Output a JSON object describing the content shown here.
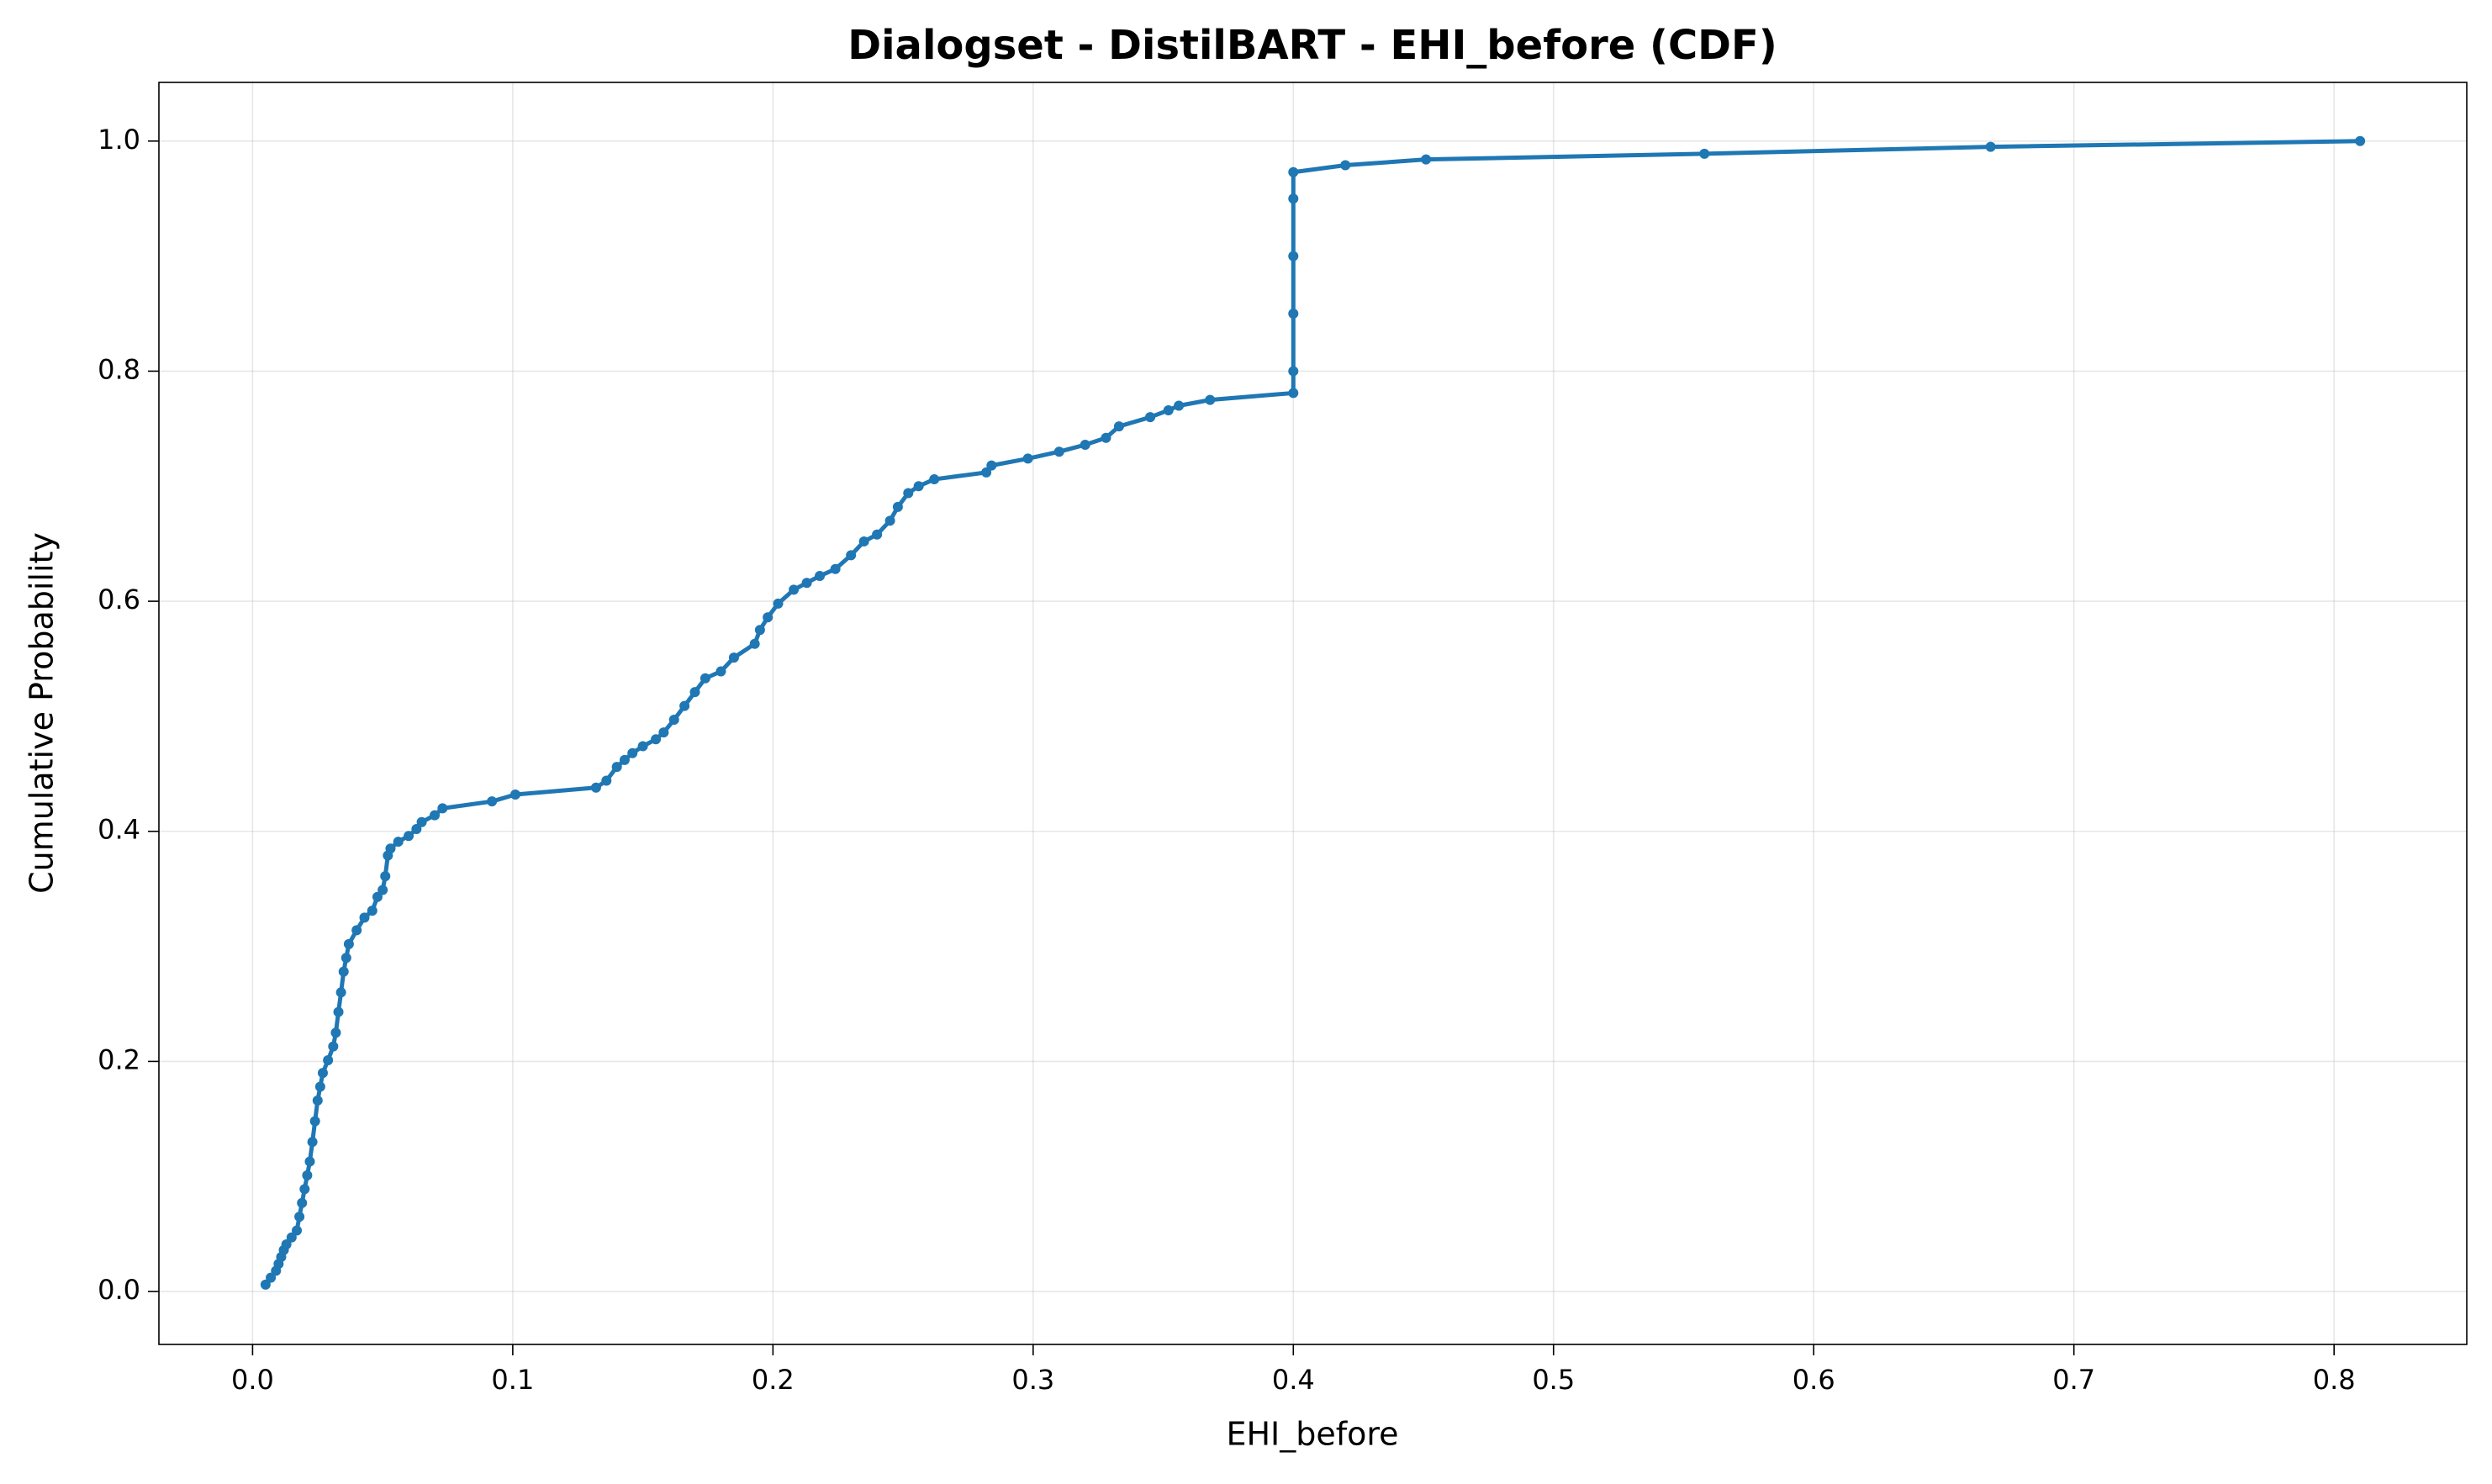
{
  "chart_data": {
    "type": "line",
    "title": "Dialogset - DistilBART - EHI_before (CDF)",
    "x_label": "EHI_before",
    "y_label": "Cumulative Probability",
    "xlim": [
      -0.036,
      0.851
    ],
    "ylim": [
      -0.046,
      1.051
    ],
    "xticks": [
      {
        "value": 0,
        "label": "0.0"
      },
      {
        "value": 0.1,
        "label": "0.1"
      },
      {
        "value": 0.2,
        "label": "0.2"
      },
      {
        "value": 0.3,
        "label": "0.3"
      },
      {
        "value": 0.4,
        "label": "0.4"
      },
      {
        "value": 0.5,
        "label": "0.5"
      },
      {
        "value": 0.6,
        "label": "0.6"
      },
      {
        "value": 0.7,
        "label": "0.7"
      },
      {
        "value": 0.8,
        "label": "0.8"
      }
    ],
    "yticks": [
      {
        "value": 0,
        "label": "0.0"
      },
      {
        "value": 0.2,
        "label": "0.2"
      },
      {
        "value": 0.4,
        "label": "0.4"
      },
      {
        "value": 0.6,
        "label": "0.6"
      },
      {
        "value": 0.8,
        "label": "0.8"
      },
      {
        "value": 1,
        "label": "1.0"
      }
    ],
    "grid": true,
    "series": [
      {
        "color": "#1f77b4",
        "x": [
          0.005,
          0.007,
          0.009,
          0.01,
          0.011,
          0.012,
          0.013,
          0.015,
          0.017,
          0.018,
          0.019,
          0.02,
          0.021,
          0.022,
          0.023,
          0.024,
          0.025,
          0.026,
          0.027,
          0.029,
          0.031,
          0.032,
          0.033,
          0.034,
          0.035,
          0.036,
          0.037,
          0.04,
          0.043,
          0.046,
          0.048,
          0.05,
          0.051,
          0.052,
          0.053,
          0.056,
          0.06,
          0.063,
          0.065,
          0.07,
          0.073,
          0.092,
          0.101,
          0.132,
          0.136,
          0.14,
          0.143,
          0.146,
          0.15,
          0.155,
          0.158,
          0.162,
          0.166,
          0.17,
          0.174,
          0.18,
          0.185,
          0.193,
          0.195,
          0.198,
          0.202,
          0.208,
          0.213,
          0.218,
          0.224,
          0.23,
          0.235,
          0.24,
          0.245,
          0.248,
          0.252,
          0.256,
          0.262,
          0.282,
          0.284,
          0.298,
          0.31,
          0.32,
          0.328,
          0.333,
          0.345,
          0.352,
          0.356,
          0.368,
          0.4,
          0.4,
          0.4,
          0.4,
          0.4,
          0.4,
          0.42,
          0.451,
          0.558,
          0.668,
          0.81
        ],
        "values": [
          0.006,
          0.012,
          0.018,
          0.024,
          0.03,
          0.036,
          0.041,
          0.047,
          0.053,
          0.065,
          0.077,
          0.089,
          0.101,
          0.113,
          0.13,
          0.148,
          0.166,
          0.178,
          0.19,
          0.201,
          0.213,
          0.225,
          0.243,
          0.26,
          0.278,
          0.29,
          0.302,
          0.314,
          0.325,
          0.331,
          0.343,
          0.349,
          0.361,
          0.379,
          0.385,
          0.391,
          0.396,
          0.402,
          0.408,
          0.414,
          0.42,
          0.426,
          0.432,
          0.438,
          0.444,
          0.456,
          0.462,
          0.468,
          0.474,
          0.48,
          0.486,
          0.497,
          0.509,
          0.521,
          0.533,
          0.539,
          0.551,
          0.563,
          0.575,
          0.586,
          0.598,
          0.61,
          0.616,
          0.622,
          0.628,
          0.64,
          0.652,
          0.658,
          0.67,
          0.682,
          0.694,
          0.7,
          0.706,
          0.712,
          0.718,
          0.724,
          0.73,
          0.736,
          0.742,
          0.752,
          0.76,
          0.766,
          0.77,
          0.775,
          0.781,
          0.8,
          0.85,
          0.9,
          0.95,
          0.973,
          0.979,
          0.984,
          0.989,
          0.995,
          1.0
        ]
      }
    ]
  }
}
